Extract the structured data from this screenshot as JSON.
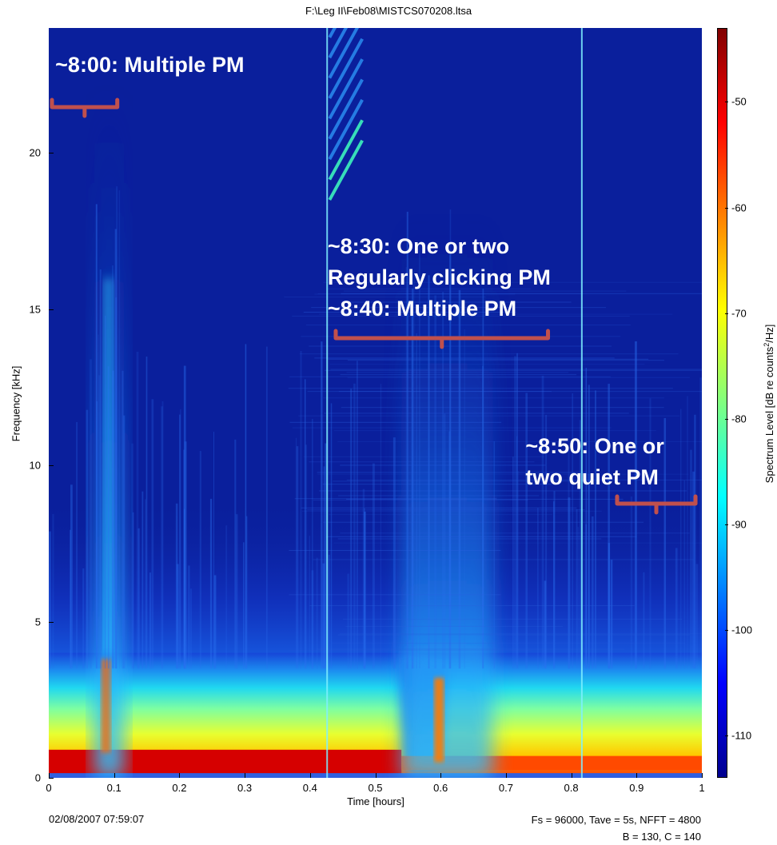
{
  "chart_data": {
    "type": "heatmap",
    "title": "F:\\Leg II\\Feb08\\MISTCS070208.ltsa",
    "xlabel": "Time [hours]",
    "ylabel": "Frequency [kHz]",
    "colorbar_label": "Spectrum Level [dB re counts²/Hz]",
    "xlim": [
      0,
      1
    ],
    "ylim": [
      0,
      24
    ],
    "clim": [
      -114,
      -43
    ],
    "x_ticks": [
      "0",
      "0.1",
      "0.2",
      "0.3",
      "0.4",
      "0.5",
      "0.6",
      "0.7",
      "0.8",
      "0.9",
      "1"
    ],
    "x_tick_values": [
      0,
      0.1,
      0.2,
      0.3,
      0.4,
      0.5,
      0.6,
      0.7,
      0.8,
      0.9,
      1
    ],
    "y_ticks": [
      "0",
      "5",
      "10",
      "15",
      "20"
    ],
    "y_tick_values": [
      0,
      5,
      10,
      15,
      20
    ],
    "colorbar_ticks": [
      "-50",
      "-60",
      "-70",
      "-80",
      "-90",
      "-100",
      "-110"
    ],
    "colorbar_tick_values": [
      -50,
      -60,
      -70,
      -80,
      -90,
      -100,
      -110
    ],
    "colormap": [
      "#00008f",
      "#0000ff",
      "#00ffff",
      "#ffff00",
      "#ff0000",
      "#800000"
    ],
    "features": [
      {
        "name": "low-frequency band",
        "x": [
          0,
          1
        ],
        "y": [
          0,
          4
        ],
        "level_db": -65
      },
      {
        "name": "high level near 0.5 kHz",
        "x": [
          0,
          0.54
        ],
        "y": [
          0.1,
          0.9
        ],
        "level_db": -52
      },
      {
        "name": "click energy ~8:00",
        "x": [
          0.08,
          0.1
        ],
        "y": [
          0,
          24
        ],
        "level_db": -82
      },
      {
        "name": "click energy ~8:40",
        "x": [
          0.54,
          0.68
        ],
        "y": [
          0,
          18
        ],
        "level_db": -84
      },
      {
        "name": "swept tone",
        "x": [
          0.43,
          0.48
        ],
        "y": [
          18,
          24
        ],
        "level_db": -72
      },
      {
        "name": "broadband transient",
        "x": [
          0.425,
          0.427
        ],
        "y": [
          0,
          24
        ],
        "level_db": -80
      },
      {
        "name": "broadband transient",
        "x": [
          0.815,
          0.817
        ],
        "y": [
          0,
          24
        ],
        "level_db": -80
      }
    ],
    "annotations": [
      {
        "text": [
          "~8:00: Multiple PM"
        ],
        "x": 0.05,
        "y": 22.5,
        "bracket": [
          0.005,
          0.105
        ]
      },
      {
        "text": [
          "~8:30: One or two",
          "Regularly clicking PM",
          "~8:40: Multiple PM"
        ],
        "x": 0.54,
        "y": 16.5,
        "bracket": [
          0.44,
          0.765
        ]
      },
      {
        "text": [
          "~8:50: One or",
          "two quiet PM"
        ],
        "x": 0.93,
        "y": 10.5,
        "bracket": [
          0.87,
          0.99
        ]
      }
    ]
  },
  "footer": {
    "date": "02/08/2007 07:59:07",
    "params_line1": "Fs = 96000, Tave = 5s, NFFT = 4800",
    "params_line2": "B = 130, C = 140"
  }
}
